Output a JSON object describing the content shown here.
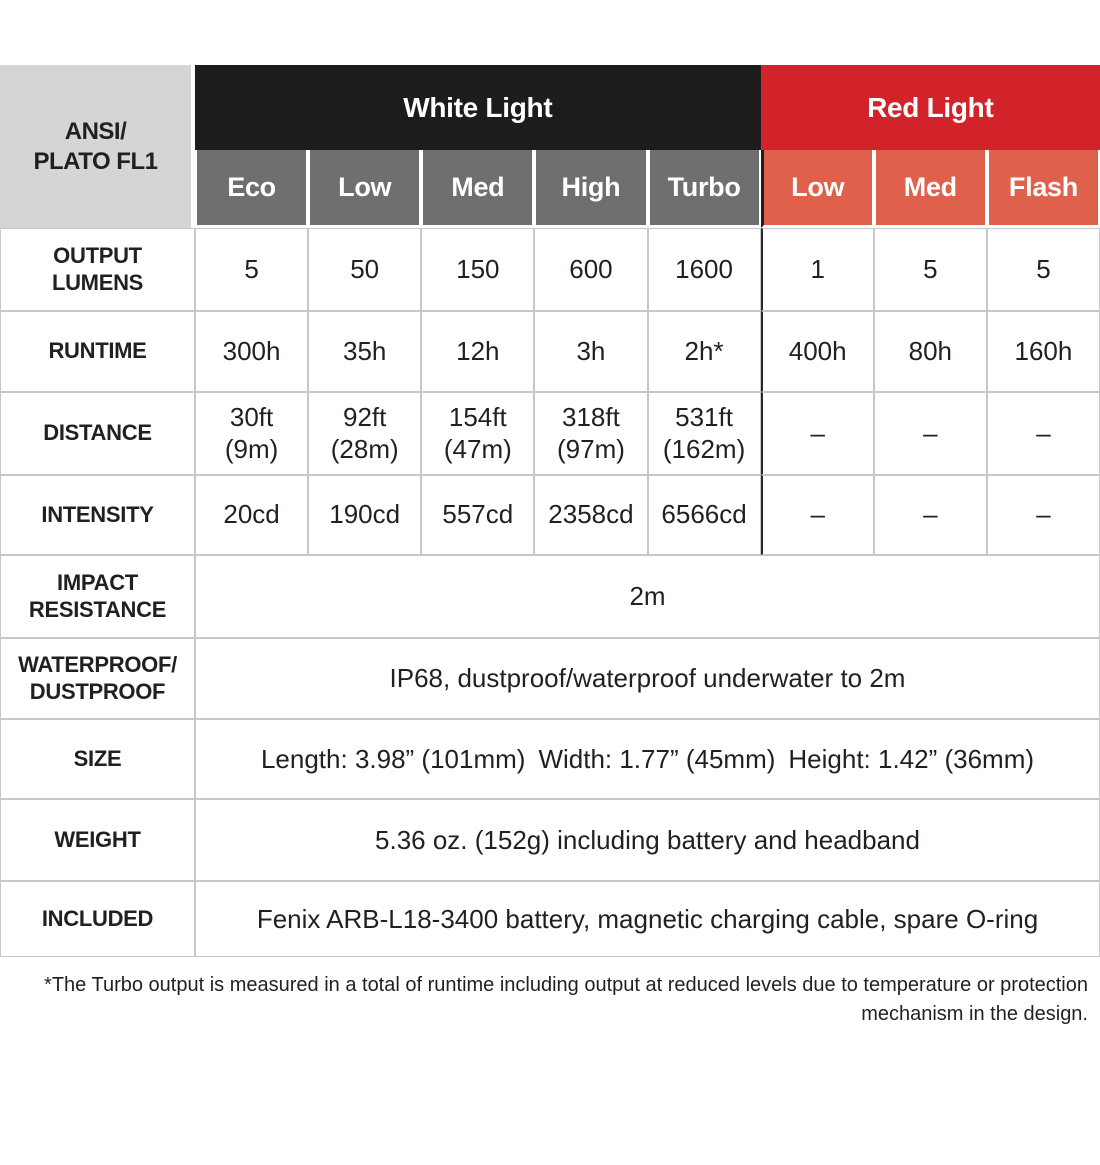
{
  "colors": {
    "black_header": "#1e1b1c",
    "red_header": "#d2232a",
    "red_subheader": "#df604b",
    "gray_subheader": "#6f6f70",
    "corner_gray": "#d4d5d6",
    "grid_line": "#c7c8ca",
    "text": "#231f20"
  },
  "table": {
    "corner": "ANSI/\nPLATO FL1",
    "groups": [
      {
        "label": "White Light",
        "modes": [
          "Eco",
          "Low",
          "Med",
          "High",
          "Turbo"
        ]
      },
      {
        "label": "Red Light",
        "modes": [
          "Low",
          "Med",
          "Flash"
        ]
      }
    ],
    "rows": [
      {
        "label": "OUTPUT\nLUMENS",
        "values": [
          "5",
          "50",
          "150",
          "600",
          "1600",
          "1",
          "5",
          "5"
        ]
      },
      {
        "label": "RUNTIME",
        "values": [
          "300h",
          "35h",
          "12h",
          "3h",
          "2h*",
          "400h",
          "80h",
          "160h"
        ]
      },
      {
        "label": "DISTANCE",
        "values": [
          "30ft\n(9m)",
          "92ft\n(28m)",
          "154ft\n(47m)",
          "318ft\n(97m)",
          "531ft\n(162m)",
          "–",
          "–",
          "–"
        ]
      },
      {
        "label": "INTENSITY",
        "values": [
          "20cd",
          "190cd",
          "557cd",
          "2358cd",
          "6566cd",
          "–",
          "–",
          "–"
        ]
      },
      {
        "label": "IMPACT\nRESISTANCE",
        "merged": "2m"
      },
      {
        "label": "WATERPROOF/\nDUSTPROOF",
        "merged": "IP68, dustproof/waterproof underwater to 2m"
      },
      {
        "label": "SIZE",
        "merged": "Length: 3.98” (101mm) Width: 1.77” (45mm) Height: 1.42” (36mm)"
      },
      {
        "label": "WEIGHT",
        "merged": "5.36 oz. (152g) including battery and headband"
      },
      {
        "label": "INCLUDED",
        "merged": "Fenix ARB-L18-3400 battery, magnetic charging cable, spare O-ring"
      }
    ],
    "footnote": "*The Turbo output is measured in a total of runtime including output at reduced levels due to temperature or protection\nmechanism in the design."
  },
  "chart_data": {
    "type": "table",
    "title": "ANSI/PLATO FL1",
    "column_groups": [
      {
        "name": "White Light",
        "columns": [
          "Eco",
          "Low",
          "Med",
          "High",
          "Turbo"
        ]
      },
      {
        "name": "Red Light",
        "columns": [
          "Low",
          "Med",
          "Flash"
        ]
      }
    ],
    "categories": [
      "Eco",
      "Low",
      "Med",
      "High",
      "Turbo",
      "Red Low",
      "Red Med",
      "Red Flash"
    ],
    "series": [
      {
        "name": "OUTPUT LUMENS",
        "values": [
          5,
          50,
          150,
          600,
          1600,
          1,
          5,
          5
        ]
      },
      {
        "name": "RUNTIME",
        "values": [
          "300h",
          "35h",
          "12h",
          "3h",
          "2h*",
          "400h",
          "80h",
          "160h"
        ]
      },
      {
        "name": "DISTANCE",
        "values": [
          "30ft (9m)",
          "92ft (28m)",
          "154ft (47m)",
          "318ft (97m)",
          "531ft (162m)",
          null,
          null,
          null
        ]
      },
      {
        "name": "INTENSITY",
        "values": [
          "20cd",
          "190cd",
          "557cd",
          "2358cd",
          "6566cd",
          null,
          null,
          null
        ]
      }
    ],
    "merged_rows": [
      {
        "name": "IMPACT RESISTANCE",
        "value": "2m"
      },
      {
        "name": "WATERPROOF/DUSTPROOF",
        "value": "IP68, dustproof/waterproof underwater to 2m"
      },
      {
        "name": "SIZE",
        "value": "Length: 3.98” (101mm)  Width: 1.77” (45mm)  Height: 1.42” (36mm)"
      },
      {
        "name": "WEIGHT",
        "value": "5.36 oz. (152g) including battery and headband"
      },
      {
        "name": "INCLUDED",
        "value": "Fenix ARB-L18-3400 battery, magnetic charging cable, spare O-ring"
      }
    ]
  }
}
